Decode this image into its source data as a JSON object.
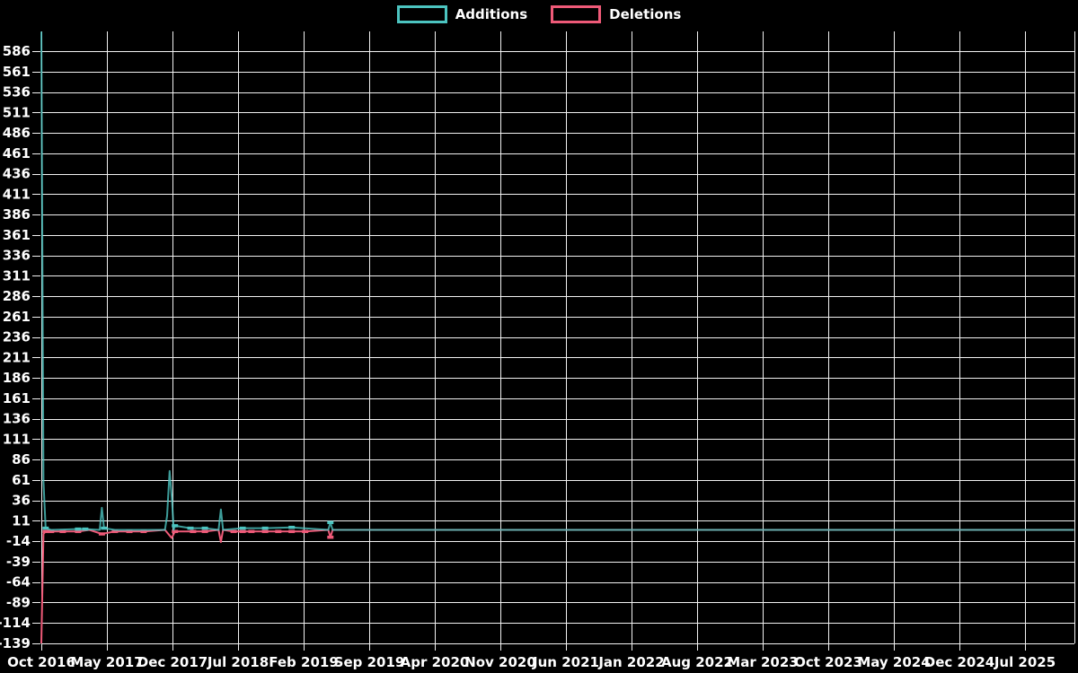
{
  "legend": {
    "items": [
      {
        "label": "Additions",
        "color": "#4cc4c0"
      },
      {
        "label": "Deletions",
        "color": "#ef5a78"
      }
    ]
  },
  "chart_data": {
    "type": "line",
    "title": "",
    "xlabel": "",
    "ylabel": "",
    "grid": true,
    "legend_position": "top-center",
    "background_color": "#000000",
    "grid_color": "#f2f2f2",
    "text_color": "#ffffff",
    "x_tick_labels": [
      "Oct 2016",
      "May 2017",
      "Dec 2017",
      "Jul 2018",
      "Feb 2019",
      "Sep 2019",
      "Apr 2020",
      "Nov 2020",
      "Jun 2021",
      "Jan 2022",
      "Aug 2022",
      "Mar 2023",
      "Oct 2023",
      "May 2024",
      "Dec 2024",
      "Jul 2025"
    ],
    "x_tick_interval_months": 7,
    "y_ticks": [
      586,
      561,
      536,
      511,
      486,
      461,
      436,
      411,
      386,
      361,
      336,
      311,
      286,
      261,
      236,
      211,
      186,
      161,
      136,
      111,
      86,
      61,
      36,
      11,
      -14,
      -39,
      -64,
      -89,
      -114,
      -139
    ],
    "ylim": [
      -146,
      610
    ],
    "series": [
      {
        "name": "Deletions",
        "color": "#ef5a78",
        "points": [
          [
            "2016-10-01",
            -139
          ],
          [
            "2016-10-08",
            -5
          ],
          [
            "2016-10-15",
            -2,
            1
          ],
          [
            "2016-11-02",
            -2,
            1
          ],
          [
            "2016-12-10",
            -2,
            1
          ],
          [
            "2017-01-29",
            -2,
            1
          ],
          [
            "2017-03-05",
            0
          ],
          [
            "2017-04-15",
            -5,
            1
          ],
          [
            "2017-05-27",
            -2,
            1
          ],
          [
            "2017-07-13",
            -2,
            1
          ],
          [
            "2017-08-29",
            -2,
            1
          ],
          [
            "2017-11-07",
            0
          ],
          [
            "2017-11-22",
            -7
          ],
          [
            "2017-11-29",
            -10
          ],
          [
            "2017-12-09",
            -2,
            1
          ],
          [
            "2018-02-07",
            -2,
            1
          ],
          [
            "2018-03-15",
            -2,
            1
          ],
          [
            "2018-04-29",
            0
          ],
          [
            "2018-05-06",
            -15
          ],
          [
            "2018-05-13",
            0
          ],
          [
            "2018-06-17",
            -2,
            1
          ],
          [
            "2018-07-16",
            -2,
            1
          ],
          [
            "2018-08-14",
            -2,
            1
          ],
          [
            "2018-09-28",
            -2,
            1
          ],
          [
            "2018-11-10",
            -2,
            1
          ],
          [
            "2018-12-23",
            -2,
            1
          ],
          [
            "2019-02-06",
            -2,
            1
          ],
          [
            "2019-04-20",
            0
          ],
          [
            "2019-04-27",
            -9,
            1
          ],
          [
            "2019-05-04",
            0
          ],
          [
            "2025-12-08",
            0
          ]
        ]
      },
      {
        "name": "Additions",
        "color": "#4cc4c0",
        "points": [
          [
            "2016-10-01",
            610
          ],
          [
            "2016-10-08",
            59
          ],
          [
            "2016-10-15",
            2,
            1
          ],
          [
            "2016-11-02",
            0
          ],
          [
            "2017-01-29",
            1,
            1
          ],
          [
            "2017-02-22",
            1,
            1
          ],
          [
            "2017-04-08",
            0
          ],
          [
            "2017-04-15",
            27
          ],
          [
            "2017-04-22",
            2,
            1
          ],
          [
            "2017-05-27",
            0
          ],
          [
            "2017-11-07",
            0
          ],
          [
            "2017-11-14",
            17
          ],
          [
            "2017-11-22",
            72
          ],
          [
            "2017-11-29",
            40
          ],
          [
            "2017-12-05",
            0
          ],
          [
            "2017-12-09",
            5,
            1
          ],
          [
            "2018-01-29",
            2,
            1
          ],
          [
            "2018-03-15",
            2,
            1
          ],
          [
            "2018-04-29",
            0
          ],
          [
            "2018-05-06",
            25
          ],
          [
            "2018-05-13",
            0
          ],
          [
            "2018-07-16",
            2,
            1
          ],
          [
            "2018-09-28",
            2,
            1
          ],
          [
            "2018-12-23",
            3,
            1
          ],
          [
            "2019-04-20",
            0
          ],
          [
            "2019-04-27",
            9,
            1
          ],
          [
            "2019-05-04",
            0
          ],
          [
            "2025-12-08",
            0
          ]
        ]
      }
    ]
  }
}
